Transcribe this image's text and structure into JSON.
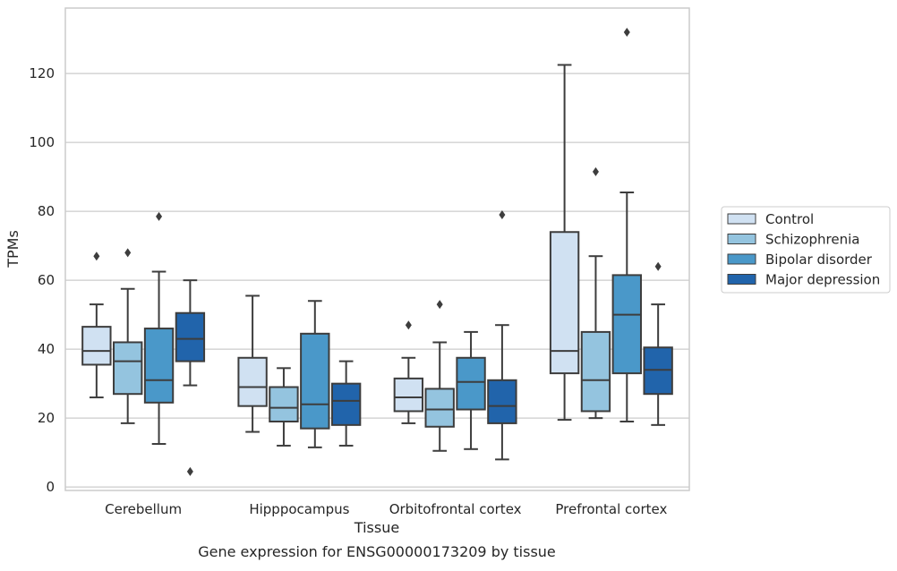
{
  "chart_data": {
    "type": "box",
    "xlabel": "Tissue",
    "ylabel": "TPMs",
    "caption": "Gene expression for ENSG00000173209 by tissue",
    "ylim": [
      -1,
      139
    ],
    "yticks": [
      0,
      20,
      40,
      60,
      80,
      100,
      120
    ],
    "grid": "horizontal",
    "legend_position": "right",
    "categories": [
      "Cerebellum",
      "Hipppocampus",
      "Orbitofrontal cortex",
      "Prefrontal cortex"
    ],
    "series": [
      {
        "name": "Control",
        "color": "#d0e1f2",
        "boxes": [
          {
            "whisker_low": 26,
            "q1": 35.5,
            "median": 39.5,
            "q3": 46.5,
            "whisker_high": 53,
            "outliers": [
              67
            ]
          },
          {
            "whisker_low": 16,
            "q1": 23.5,
            "median": 29,
            "q3": 37.5,
            "whisker_high": 55.5,
            "outliers": []
          },
          {
            "whisker_low": 18.5,
            "q1": 22,
            "median": 26,
            "q3": 31.5,
            "whisker_high": 37.5,
            "outliers": [
              47
            ]
          },
          {
            "whisker_low": 19.5,
            "q1": 33,
            "median": 39.5,
            "q3": 74,
            "whisker_high": 122.5,
            "outliers": []
          }
        ]
      },
      {
        "name": "Schizophrenia",
        "color": "#94c4df",
        "boxes": [
          {
            "whisker_low": 18.5,
            "q1": 27,
            "median": 36.5,
            "q3": 42,
            "whisker_high": 57.5,
            "outliers": [
              68
            ]
          },
          {
            "whisker_low": 12,
            "q1": 19,
            "median": 23,
            "q3": 29,
            "whisker_high": 34.5,
            "outliers": []
          },
          {
            "whisker_low": 10.5,
            "q1": 17.5,
            "median": 22.5,
            "q3": 28.5,
            "whisker_high": 42,
            "outliers": [
              53
            ]
          },
          {
            "whisker_low": 20,
            "q1": 22,
            "median": 31,
            "q3": 45,
            "whisker_high": 67,
            "outliers": [
              91.5
            ]
          }
        ]
      },
      {
        "name": "Bipolar disorder",
        "color": "#4a98c9",
        "boxes": [
          {
            "whisker_low": 12.5,
            "q1": 24.5,
            "median": 31,
            "q3": 46,
            "whisker_high": 62.5,
            "outliers": [
              78.5
            ]
          },
          {
            "whisker_low": 11.5,
            "q1": 17,
            "median": 24,
            "q3": 44.5,
            "whisker_high": 54,
            "outliers": []
          },
          {
            "whisker_low": 11,
            "q1": 22.5,
            "median": 30.5,
            "q3": 37.5,
            "whisker_high": 45,
            "outliers": []
          },
          {
            "whisker_low": 19,
            "q1": 33,
            "median": 50,
            "q3": 61.5,
            "whisker_high": 85.5,
            "outliers": [
              132
            ]
          }
        ]
      },
      {
        "name": "Major depression",
        "color": "#2164ab",
        "boxes": [
          {
            "whisker_low": 29.5,
            "q1": 36.5,
            "median": 43,
            "q3": 50.5,
            "whisker_high": 60,
            "outliers": [
              4.5
            ]
          },
          {
            "whisker_low": 12,
            "q1": 18,
            "median": 25,
            "q3": 30,
            "whisker_high": 36.5,
            "outliers": []
          },
          {
            "whisker_low": 8,
            "q1": 18.5,
            "median": 23.5,
            "q3": 31,
            "whisker_high": 47,
            "outliers": [
              79
            ]
          },
          {
            "whisker_low": 18,
            "q1": 27,
            "median": 34,
            "q3": 40.5,
            "whisker_high": 53,
            "outliers": [
              64
            ]
          }
        ]
      }
    ]
  }
}
